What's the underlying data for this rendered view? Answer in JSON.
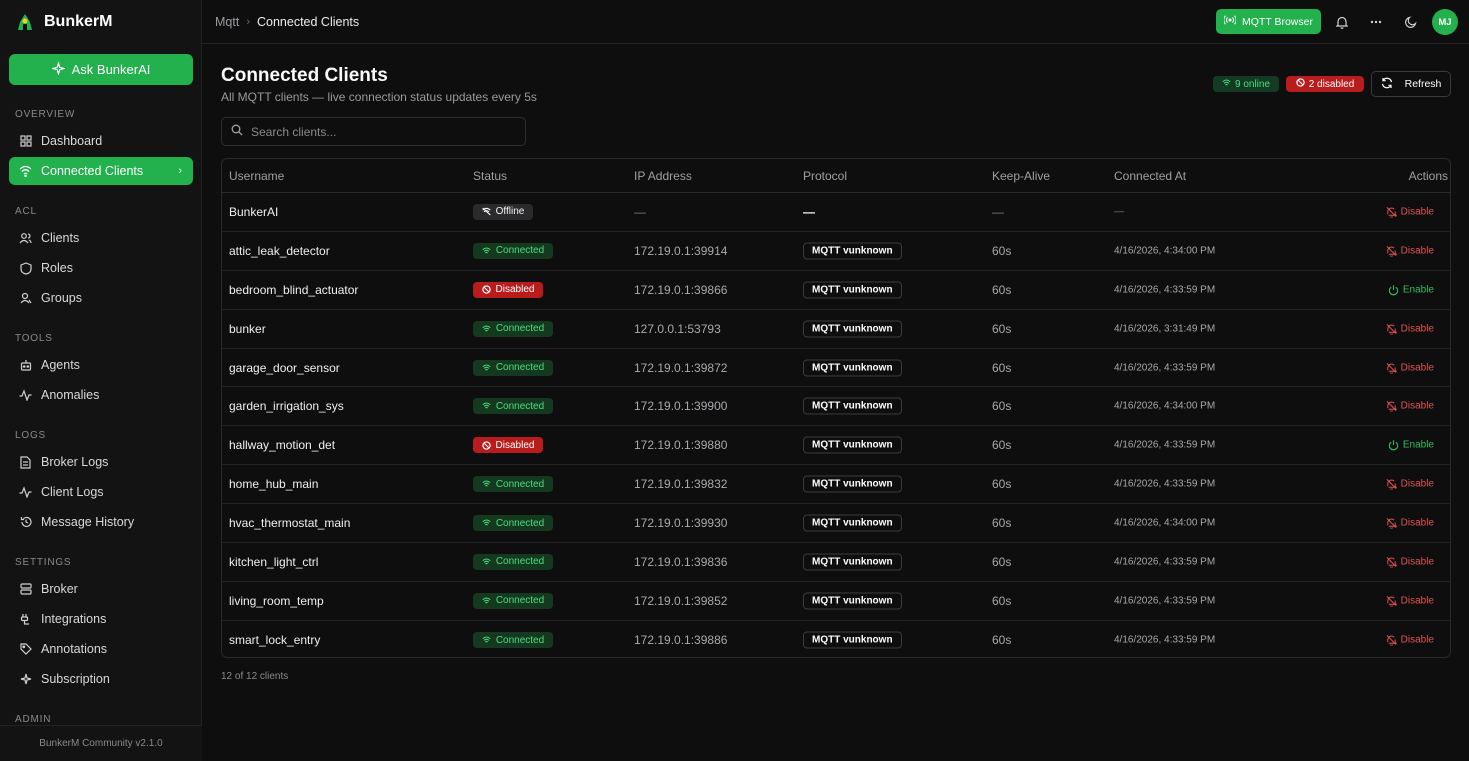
{
  "brand": {
    "name": "BunkerM"
  },
  "sidebar": {
    "ask_label": "Ask BunkerAI",
    "sections": [
      {
        "label": "OVERVIEW"
      },
      {
        "label": "ACL"
      },
      {
        "label": "TOOLS"
      },
      {
        "label": "LOGS"
      },
      {
        "label": "SETTINGS"
      },
      {
        "label": "ADMIN"
      }
    ],
    "items": [
      {
        "label": "Dashboard",
        "icon": "grid-icon"
      },
      {
        "label": "Connected Clients",
        "icon": "wifi-icon",
        "active": true
      },
      {
        "label": "Clients",
        "icon": "users-icon"
      },
      {
        "label": "Roles",
        "icon": "shield-icon"
      },
      {
        "label": "Groups",
        "icon": "user-group-icon"
      },
      {
        "label": "Agents",
        "icon": "robot-icon"
      },
      {
        "label": "Anomalies",
        "icon": "activity-icon"
      },
      {
        "label": "Broker Logs",
        "icon": "file-text-icon"
      },
      {
        "label": "Client Logs",
        "icon": "activity-icon"
      },
      {
        "label": "Message History",
        "icon": "history-icon"
      },
      {
        "label": "Broker",
        "icon": "server-icon"
      },
      {
        "label": "Integrations",
        "icon": "plug-icon"
      },
      {
        "label": "Annotations",
        "icon": "tag-icon"
      },
      {
        "label": "Subscription",
        "icon": "sparkles-icon"
      }
    ],
    "footer": "BunkerM Community v2.1.0"
  },
  "topbar": {
    "breadcrumb": [
      "Mqtt",
      "Connected Clients"
    ],
    "mqtt_browser_label": "MQTT Browser",
    "avatar_initials": "MJ"
  },
  "page": {
    "title": "Connected Clients",
    "subtitle": "All MQTT clients — live connection status updates every 5s",
    "online_badge": "9 online",
    "disabled_badge": "2 disabled",
    "refresh_label": "Refresh",
    "search_placeholder": "Search clients...",
    "footer_count": "12 of 12 clients"
  },
  "table": {
    "headers": [
      "Username",
      "Status",
      "IP Address",
      "Protocol",
      "Keep-Alive",
      "Connected At",
      "Actions"
    ],
    "rows": [
      {
        "username": "BunkerAI",
        "status": "Offline",
        "ip": "—",
        "protocol": "—",
        "keepalive": "—",
        "connected_at": "—",
        "action": "Disable"
      },
      {
        "username": "attic_leak_detector",
        "status": "Connected",
        "ip": "172.19.0.1:39914",
        "protocol": "MQTT vunknown",
        "keepalive": "60s",
        "connected_at": "4/16/2026, 4:34:00 PM",
        "action": "Disable"
      },
      {
        "username": "bedroom_blind_actuator",
        "status": "Disabled",
        "ip": "172.19.0.1:39866",
        "protocol": "MQTT vunknown",
        "keepalive": "60s",
        "connected_at": "4/16/2026, 4:33:59 PM",
        "action": "Enable"
      },
      {
        "username": "bunker",
        "status": "Connected",
        "ip": "127.0.0.1:53793",
        "protocol": "MQTT vunknown",
        "keepalive": "60s",
        "connected_at": "4/16/2026, 3:31:49 PM",
        "action": "Disable"
      },
      {
        "username": "garage_door_sensor",
        "status": "Connected",
        "ip": "172.19.0.1:39872",
        "protocol": "MQTT vunknown",
        "keepalive": "60s",
        "connected_at": "4/16/2026, 4:33:59 PM",
        "action": "Disable"
      },
      {
        "username": "garden_irrigation_sys",
        "status": "Connected",
        "ip": "172.19.0.1:39900",
        "protocol": "MQTT vunknown",
        "keepalive": "60s",
        "connected_at": "4/16/2026, 4:34:00 PM",
        "action": "Disable"
      },
      {
        "username": "hallway_motion_det",
        "status": "Disabled",
        "ip": "172.19.0.1:39880",
        "protocol": "MQTT vunknown",
        "keepalive": "60s",
        "connected_at": "4/16/2026, 4:33:59 PM",
        "action": "Enable"
      },
      {
        "username": "home_hub_main",
        "status": "Connected",
        "ip": "172.19.0.1:39832",
        "protocol": "MQTT vunknown",
        "keepalive": "60s",
        "connected_at": "4/16/2026, 4:33:59 PM",
        "action": "Disable"
      },
      {
        "username": "hvac_thermostat_main",
        "status": "Connected",
        "ip": "172.19.0.1:39930",
        "protocol": "MQTT vunknown",
        "keepalive": "60s",
        "connected_at": "4/16/2026, 4:34:00 PM",
        "action": "Disable"
      },
      {
        "username": "kitchen_light_ctrl",
        "status": "Connected",
        "ip": "172.19.0.1:39836",
        "protocol": "MQTT vunknown",
        "keepalive": "60s",
        "connected_at": "4/16/2026, 4:33:59 PM",
        "action": "Disable"
      },
      {
        "username": "living_room_temp",
        "status": "Connected",
        "ip": "172.19.0.1:39852",
        "protocol": "MQTT vunknown",
        "keepalive": "60s",
        "connected_at": "4/16/2026, 4:33:59 PM",
        "action": "Disable"
      },
      {
        "username": "smart_lock_entry",
        "status": "Connected",
        "ip": "172.19.0.1:39886",
        "protocol": "MQTT vunknown",
        "keepalive": "60s",
        "connected_at": "4/16/2026, 4:33:59 PM",
        "action": "Disable"
      }
    ]
  },
  "colors": {
    "accent": "#22b14c",
    "danger": "#b91c1c",
    "background": "#0e0e0f"
  }
}
